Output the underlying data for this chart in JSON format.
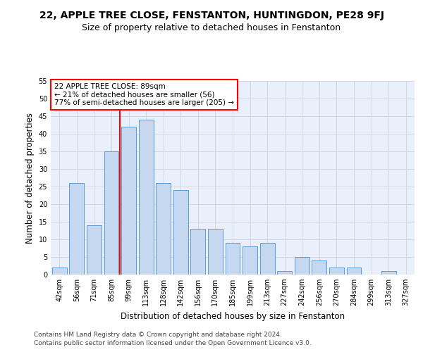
{
  "title": "22, APPLE TREE CLOSE, FENSTANTON, HUNTINGDON, PE28 9FJ",
  "subtitle": "Size of property relative to detached houses in Fenstanton",
  "xlabel": "Distribution of detached houses by size in Fenstanton",
  "ylabel": "Number of detached properties",
  "bar_labels": [
    "42sqm",
    "56sqm",
    "71sqm",
    "85sqm",
    "99sqm",
    "113sqm",
    "128sqm",
    "142sqm",
    "156sqm",
    "170sqm",
    "185sqm",
    "199sqm",
    "213sqm",
    "227sqm",
    "242sqm",
    "256sqm",
    "270sqm",
    "284sqm",
    "299sqm",
    "313sqm",
    "327sqm"
  ],
  "bar_values": [
    2,
    26,
    14,
    35,
    42,
    44,
    26,
    24,
    13,
    13,
    9,
    8,
    9,
    1,
    5,
    4,
    2,
    2,
    0,
    1,
    0
  ],
  "bar_color": "#c5d8f0",
  "bar_edge_color": "#5b9bd5",
  "vline_x": 3.5,
  "vline_color": "red",
  "annotation_text": "22 APPLE TREE CLOSE: 89sqm\n← 21% of detached houses are smaller (56)\n77% of semi-detached houses are larger (205) →",
  "ylim": [
    0,
    55
  ],
  "yticks": [
    0,
    5,
    10,
    15,
    20,
    25,
    30,
    35,
    40,
    45,
    50,
    55
  ],
  "grid_color": "#d0d8e8",
  "background_color": "#eaf0fb",
  "footer_line1": "Contains HM Land Registry data © Crown copyright and database right 2024.",
  "footer_line2": "Contains public sector information licensed under the Open Government Licence v3.0.",
  "title_fontsize": 10,
  "subtitle_fontsize": 9,
  "axis_label_fontsize": 8.5,
  "tick_fontsize": 7,
  "annotation_fontsize": 7.5,
  "footer_fontsize": 6.5
}
